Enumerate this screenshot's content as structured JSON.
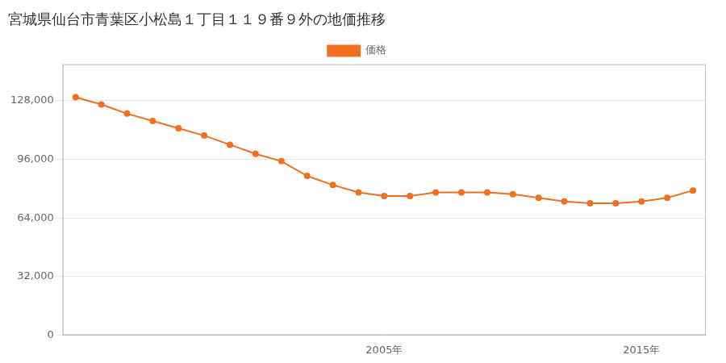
{
  "chart_data": {
    "type": "line",
    "title": "宮城県仙台市青葉区小松島１丁目１１９番９外の地価推移",
    "x": [
      1993,
      1994,
      1995,
      1996,
      1997,
      1998,
      1999,
      2000,
      2001,
      2002,
      2003,
      2004,
      2005,
      2006,
      2007,
      2008,
      2009,
      2010,
      2011,
      2012,
      2013,
      2014,
      2015,
      2016,
      2017
    ],
    "series": [
      {
        "name": "価格",
        "color": "#f07020",
        "marker": "circle",
        "values": [
          130000,
          126000,
          121000,
          117000,
          113000,
          109000,
          104000,
          99000,
          95000,
          87000,
          82000,
          78000,
          76000,
          76000,
          78000,
          78000,
          78000,
          77000,
          75000,
          73000,
          72000,
          72000,
          73000,
          75000,
          79000
        ]
      }
    ],
    "xlim": [
      1992.5,
      2017.5
    ],
    "xticks": [
      {
        "value": 2005,
        "label": "2005年"
      },
      {
        "value": 2015,
        "label": "2015年"
      }
    ],
    "ylim": [
      0,
      148000
    ],
    "yticks": [
      0,
      {
        "value": 32000,
        "label": "32,000"
      },
      {
        "value": 64000,
        "label": "64,000"
      },
      {
        "value": 96000,
        "label": "96,000"
      },
      {
        "value": 128000,
        "label": "128,000"
      }
    ],
    "grid": "y",
    "legend": "top"
  }
}
